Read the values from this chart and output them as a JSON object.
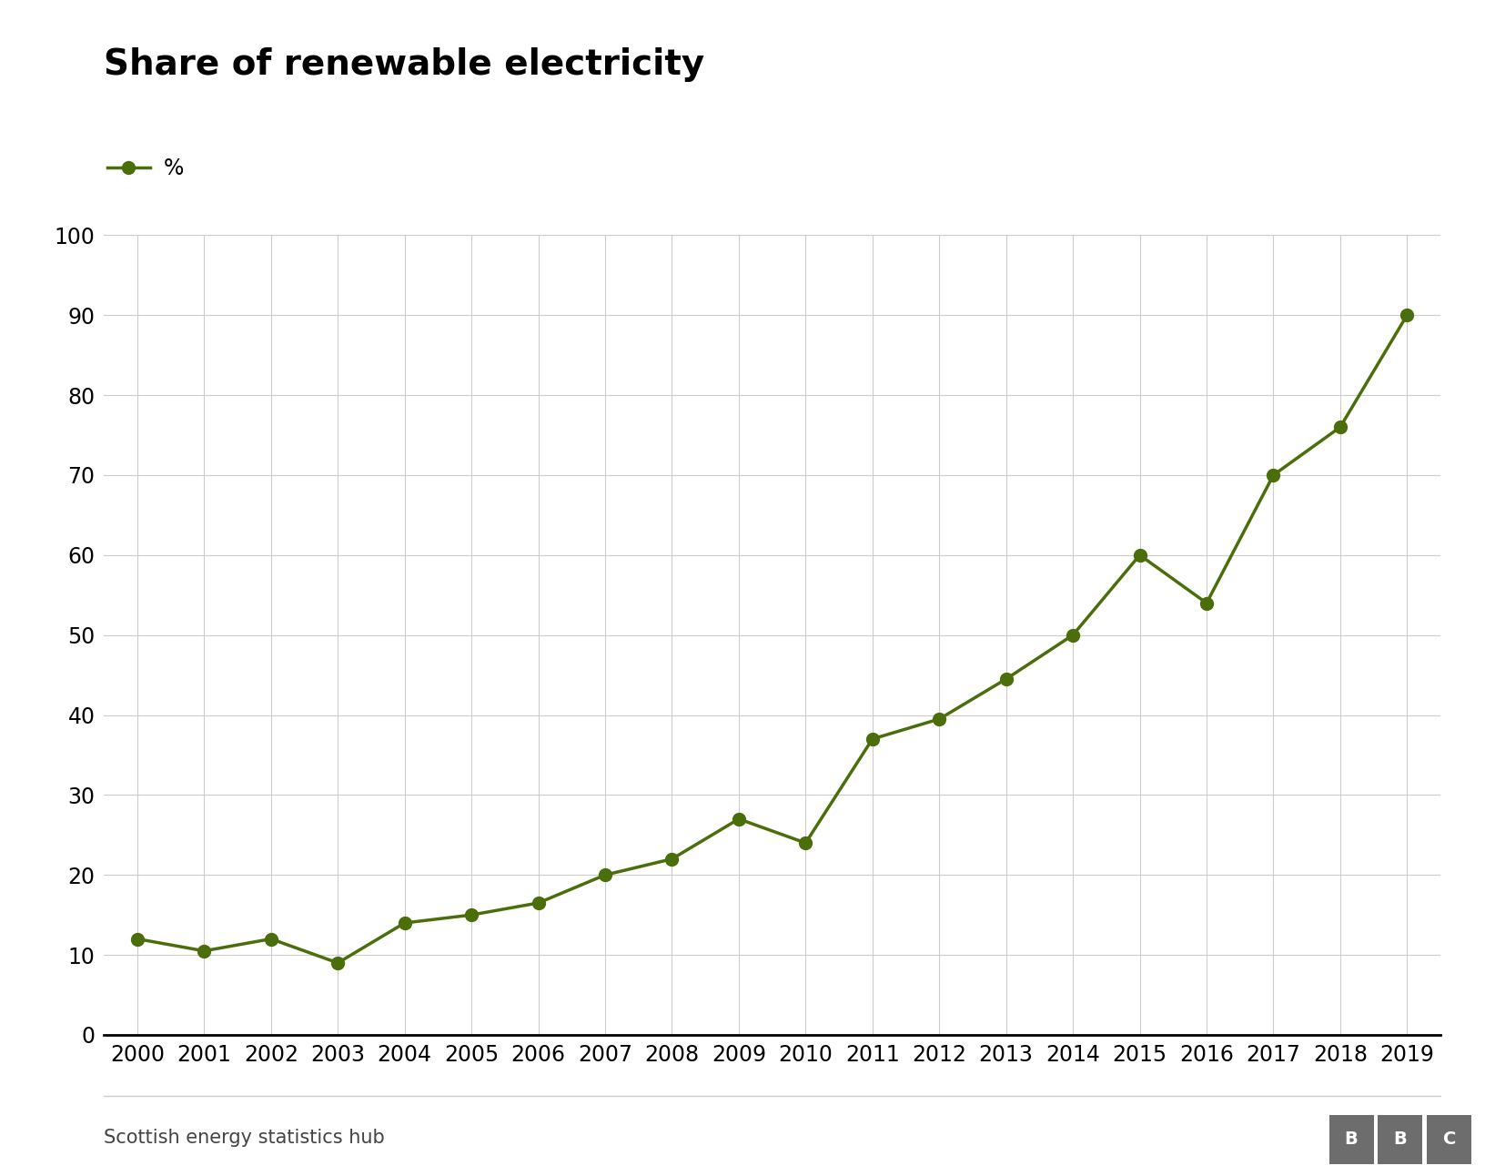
{
  "title": "Share of renewable electricity",
  "legend_label": "%",
  "source": "Scottish energy statistics hub",
  "years": [
    2000,
    2001,
    2002,
    2003,
    2004,
    2005,
    2006,
    2007,
    2008,
    2009,
    2010,
    2011,
    2012,
    2013,
    2014,
    2015,
    2016,
    2017,
    2018,
    2019
  ],
  "values": [
    12,
    10.5,
    12,
    9,
    14,
    15,
    16.5,
    20,
    22,
    27,
    24,
    37,
    39.5,
    44.5,
    50,
    60,
    54,
    70,
    76,
    90
  ],
  "line_color": "#4a6e0a",
  "marker_color": "#4a6e0a",
  "background_color": "#ffffff",
  "grid_color": "#cccccc",
  "title_fontsize": 28,
  "legend_fontsize": 17,
  "tick_fontsize": 17,
  "source_fontsize": 15,
  "ylim": [
    0,
    100
  ],
  "yticks": [
    0,
    10,
    20,
    30,
    40,
    50,
    60,
    70,
    80,
    90,
    100
  ],
  "line_width": 2.5,
  "marker_size": 10,
  "bbc_logo_text": "BBC",
  "bbc_box_color": "#6d6d6d"
}
